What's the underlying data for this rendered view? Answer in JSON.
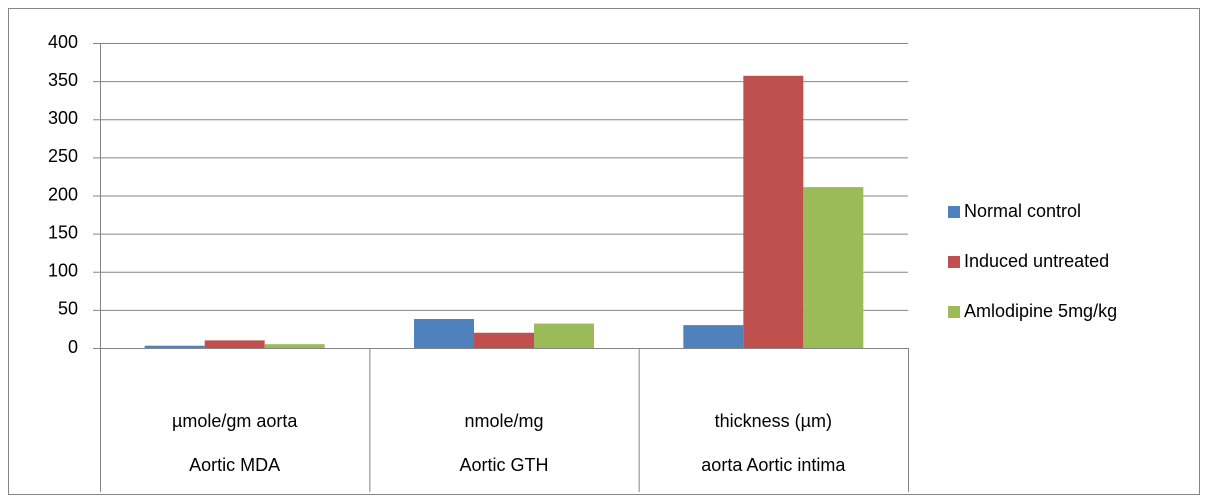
{
  "chart_data": {
    "type": "bar",
    "categories": [
      "µmole/gm aorta",
      "nmole/mg",
      "thickness (µm)"
    ],
    "category_groups": [
      "Aortic MDA",
      "Aortic GTH",
      "aorta Aortic intima"
    ],
    "series": [
      {
        "name": "Normal control",
        "color": "#4f81bd",
        "values": [
          3,
          38,
          30
        ]
      },
      {
        "name": "Induced untreated",
        "color": "#c0504d",
        "values": [
          10,
          20,
          357
        ]
      },
      {
        "name": "Amlodipine 5mg/kg",
        "color": "#9bbb59",
        "values": [
          5,
          32,
          211
        ]
      }
    ],
    "ylim": [
      0,
      400
    ],
    "yticks": [
      0,
      50,
      100,
      150,
      200,
      250,
      300,
      350,
      400
    ],
    "grid": true,
    "legend": "right"
  }
}
